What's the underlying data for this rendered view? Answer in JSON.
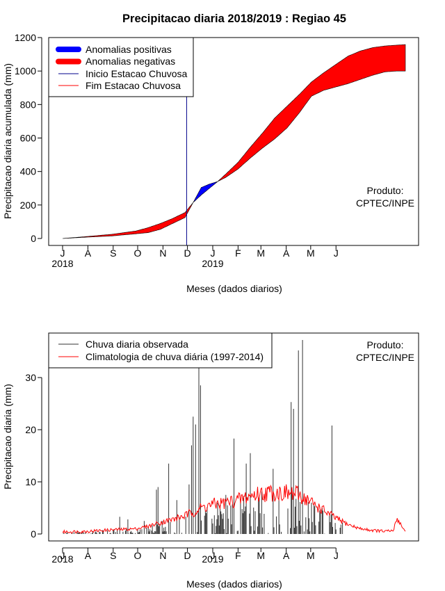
{
  "title": "Precipitacao diaria 2018/2019 : Regiao 45",
  "chart_data": [
    {
      "type": "area",
      "ylabel": "Precipitacao diaria acumulada (mm)",
      "xlabel": "Meses (dados diarios)",
      "ylim": [
        0,
        1200
      ],
      "yticks": [
        0,
        200,
        400,
        600,
        800,
        1000,
        1200
      ],
      "month_ticks": [
        "J",
        "A",
        "S",
        "O",
        "N",
        "D",
        "J",
        "F",
        "M",
        "A",
        "M",
        "J"
      ],
      "year_labels": [
        "2018",
        "2019"
      ],
      "producer": [
        "Produto:",
        "CPTEC/INPE"
      ],
      "legend": {
        "positive": "Anomalias positivas",
        "negative": "Anomalias negativas",
        "start": "Inicio Estacao Chuvosa",
        "end": "Fim Estacao Chuvosa"
      },
      "rainy_season_start_day": 152,
      "observed_cumulative": {
        "day": [
          0,
          30,
          60,
          90,
          105,
          120,
          135,
          150,
          160,
          170,
          180,
          190,
          200,
          215,
          230,
          245,
          260,
          275,
          290,
          305,
          320,
          335,
          350,
          365,
          380,
          395,
          410,
          420
        ],
        "value": [
          0,
          8,
          15,
          28,
          35,
          55,
          90,
          125,
          215,
          305,
          325,
          340,
          365,
          415,
          480,
          540,
          595,
          660,
          750,
          850,
          885,
          905,
          925,
          950,
          975,
          995,
          1000,
          1000
        ]
      },
      "climatology_cumulative": {
        "day": [
          0,
          30,
          60,
          90,
          105,
          120,
          135,
          150,
          160,
          170,
          180,
          190,
          200,
          215,
          230,
          245,
          260,
          275,
          290,
          305,
          320,
          335,
          350,
          365,
          380,
          395,
          410,
          420
        ],
        "value": [
          0,
          12,
          25,
          45,
          65,
          90,
          120,
          155,
          215,
          260,
          300,
          340,
          385,
          455,
          545,
          630,
          720,
          790,
          860,
          935,
          990,
          1040,
          1090,
          1120,
          1140,
          1150,
          1155,
          1158
        ]
      },
      "colors": {
        "positive": "#0000ff",
        "negative": "#ff0000",
        "start_line": "#00008b",
        "end_line": "#ff0000"
      }
    },
    {
      "type": "bar+line",
      "ylabel": "Precipitacao diaria (mm)",
      "xlabel": "Meses (dados diarios)",
      "ylim": [
        0,
        37
      ],
      "yticks": [
        0,
        10,
        20,
        30
      ],
      "month_ticks": [
        "J",
        "A",
        "S",
        "O",
        "N",
        "D",
        "J",
        "F",
        "M",
        "A",
        "M",
        "J"
      ],
      "year_labels": [
        "2018",
        "2019"
      ],
      "producer": [
        "Produto:",
        "CPTEC/INPE"
      ],
      "legend": {
        "observed": "Chuva diaria observada",
        "climatology": "Climatologia de chuva diária (1997-2014)"
      },
      "observed_peaks": [
        {
          "day": 70,
          "value": 3.3
        },
        {
          "day": 80,
          "value": 2.8
        },
        {
          "day": 100,
          "value": 2.5
        },
        {
          "day": 115,
          "value": 8.5
        },
        {
          "day": 117,
          "value": 9.0
        },
        {
          "day": 130,
          "value": 13.5
        },
        {
          "day": 140,
          "value": 6.5
        },
        {
          "day": 155,
          "value": 9.5
        },
        {
          "day": 158,
          "value": 17.0
        },
        {
          "day": 160,
          "value": 22.5
        },
        {
          "day": 163,
          "value": 21.0
        },
        {
          "day": 167,
          "value": 31.8
        },
        {
          "day": 169,
          "value": 28.5
        },
        {
          "day": 175,
          "value": 4.5
        },
        {
          "day": 190,
          "value": 6.0
        },
        {
          "day": 200,
          "value": 7.5
        },
        {
          "day": 210,
          "value": 18.3
        },
        {
          "day": 225,
          "value": 13.5
        },
        {
          "day": 230,
          "value": 15.5
        },
        {
          "day": 240,
          "value": 7.0
        },
        {
          "day": 258,
          "value": 12.5
        },
        {
          "day": 265,
          "value": 6.5
        },
        {
          "day": 280,
          "value": 25.3
        },
        {
          "day": 283,
          "value": 24.0
        },
        {
          "day": 289,
          "value": 35.2
        },
        {
          "day": 294,
          "value": 37.2
        },
        {
          "day": 305,
          "value": 6.0
        },
        {
          "day": 318,
          "value": 5.0
        },
        {
          "day": 330,
          "value": 20.8
        },
        {
          "day": 340,
          "value": 1.2
        }
      ],
      "climatology_series": {
        "day": [
          0,
          30,
          60,
          90,
          105,
          120,
          135,
          150,
          160,
          170,
          180,
          190,
          200,
          215,
          230,
          245,
          260,
          275,
          290,
          305,
          320,
          335,
          350,
          365,
          380,
          395,
          405,
          410,
          420
        ],
        "value": [
          0.4,
          0.5,
          0.8,
          1.0,
          1.5,
          2.2,
          2.8,
          3.5,
          4.2,
          5.0,
          5.5,
          5.8,
          6.0,
          6.5,
          7.3,
          7.8,
          8.0,
          7.8,
          7.5,
          6.0,
          4.5,
          3.0,
          1.8,
          1.0,
          0.7,
          0.5,
          0.6,
          3.0,
          0.4
        ]
      },
      "colors": {
        "observed": "#333333",
        "climatology": "#ff0000"
      }
    }
  ]
}
